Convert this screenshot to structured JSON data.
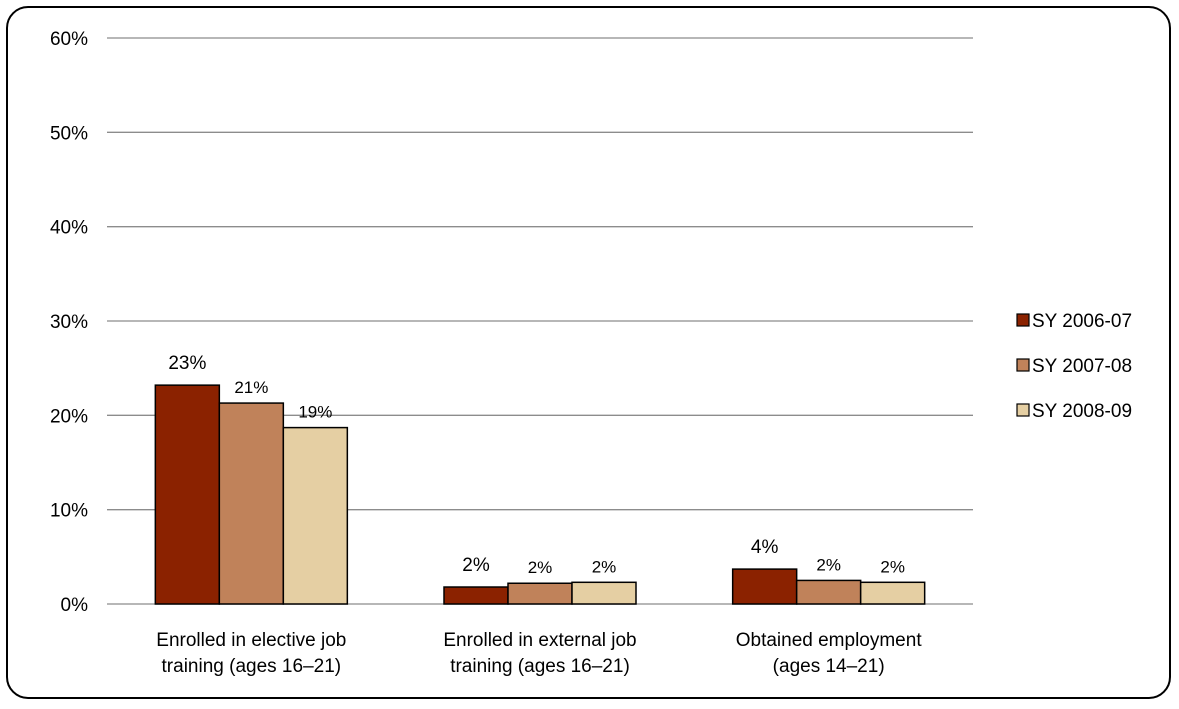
{
  "chart_data": {
    "type": "bar",
    "title": "",
    "xlabel": "",
    "ylabel": "",
    "categories": [
      [
        "Enrolled in elective job",
        "training (ages 16–21)"
      ],
      [
        "Enrolled in external job",
        "training (ages 16–21)"
      ],
      [
        "Obtained employment",
        "(ages 14–21)"
      ]
    ],
    "series": [
      {
        "name": "SY 2006-07",
        "color": "#8B2200",
        "values": [
          23.2,
          1.8,
          3.7
        ],
        "labels": [
          "23%",
          "2%",
          "4%"
        ]
      },
      {
        "name": "SY 2007-08",
        "color": "#C0825A",
        "values": [
          21.3,
          2.2,
          2.5
        ],
        "labels": [
          "21%",
          "2%",
          "2%"
        ]
      },
      {
        "name": "SY 2008-09",
        "color": "#E5CFA3",
        "values": [
          18.7,
          2.3,
          2.3
        ],
        "labels": [
          "19%",
          "2%",
          "2%"
        ]
      }
    ],
    "ylim": [
      0,
      60
    ],
    "yticks": [
      0,
      10,
      20,
      30,
      40,
      50,
      60
    ],
    "ytick_labels": [
      "0%",
      "10%",
      "20%",
      "30%",
      "40%",
      "50%",
      "60%"
    ],
    "grid": true,
    "legend_position": "right"
  }
}
